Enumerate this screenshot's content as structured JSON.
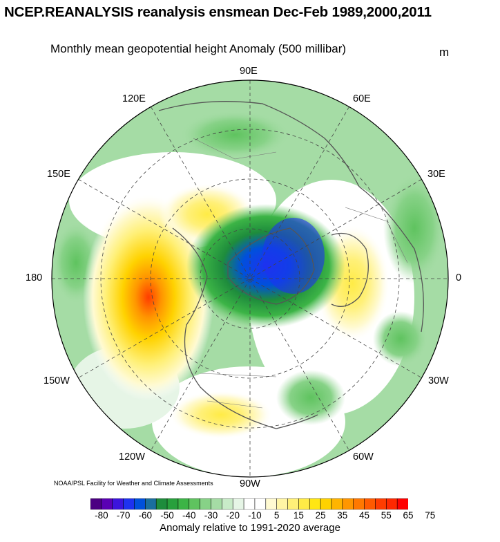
{
  "title": "NCEP.REANALYSIS reanalysis ensmean Dec-Feb 1989,2000,2011",
  "subtitle": "Monthly mean geopotential height Anomaly (500 millibar)",
  "units": "m",
  "longitude_labels": {
    "lon_90E": "90E",
    "lon_60E": "60E",
    "lon_30E": "30E",
    "lon_0": "0",
    "lon_30W": "30W",
    "lon_60W": "60W",
    "lon_90W": "90W",
    "lon_120W": "120W",
    "lon_150W": "150W",
    "lon_180": "180",
    "lon_150E": "150E",
    "lon_120E": "120E"
  },
  "credit": "NOAA/PSL Facility for Weather and Climate Assessments",
  "colorbar": {
    "labels": [
      "-80",
      "-70",
      "-60",
      "-50",
      "-40",
      "-30",
      "-20",
      "-10",
      "5",
      "15",
      "25",
      "35",
      "45",
      "55",
      "65",
      "75"
    ],
    "colors": [
      "#4b0082",
      "#5a00b4",
      "#3c14dc",
      "#1e32f0",
      "#0050dc",
      "#1a6e9e",
      "#1e8c3c",
      "#28a03c",
      "#3cb446",
      "#5fc35f",
      "#87d287",
      "#a5dca5",
      "#c8ebc8",
      "#e6f5e6",
      "#ffffff",
      "#ffffff",
      "#fffad2",
      "#fff5a5",
      "#fff078",
      "#ffeb46",
      "#ffe614",
      "#ffd200",
      "#ffb400",
      "#ff9600",
      "#ff7800",
      "#ff5a00",
      "#ff3c00",
      "#ff2800",
      "#ff0000"
    ],
    "caption": "Anomaly relative to 1991-2020 average"
  },
  "anomaly_regions": [
    {
      "name": "arctic-negative-center",
      "value": -55
    },
    {
      "name": "west-north-america-positive",
      "value": 65
    },
    {
      "name": "europe-positive",
      "value": 30
    },
    {
      "name": "eastern-us-positive",
      "value": 20
    },
    {
      "name": "siberia-positive",
      "value": 25
    }
  ]
}
